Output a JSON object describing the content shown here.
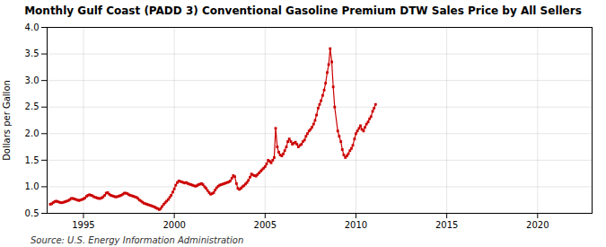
{
  "chart_data": {
    "type": "line",
    "title": "Monthly Gulf Coast (PADD 3) Conventional Gasoline Premium DTW Sales Price by All Sellers",
    "ylabel": "Dollars per Gallon",
    "annotations": [
      "Source: U.S. Energy Information Administration"
    ],
    "color": "#cc0000",
    "marker": "square",
    "grid": true,
    "xlim": [
      1993.0,
      2023.0
    ],
    "xticks": [
      1995,
      2000,
      2005,
      2010,
      2015,
      2020
    ],
    "ylim": [
      0.5,
      4.0
    ],
    "yticks": [
      0.5,
      {
        "value": 1.0,
        "label": "1.0"
      },
      1.5,
      {
        "value": 2.0,
        "label": "2.0"
      },
      2.5,
      {
        "value": 3.0,
        "label": "3.0"
      },
      3.5,
      {
        "value": 4.0,
        "label": "4.0"
      }
    ],
    "x": [
      1993.17,
      1993.25,
      1993.33,
      1993.42,
      1993.5,
      1993.58,
      1993.67,
      1993.75,
      1993.83,
      1993.92,
      1994.0,
      1994.08,
      1994.17,
      1994.25,
      1994.33,
      1994.42,
      1994.5,
      1994.58,
      1994.67,
      1994.75,
      1994.83,
      1994.92,
      1995.0,
      1995.08,
      1995.17,
      1995.25,
      1995.33,
      1995.42,
      1995.5,
      1995.58,
      1995.67,
      1995.75,
      1995.83,
      1995.92,
      1996.0,
      1996.08,
      1996.17,
      1996.25,
      1996.33,
      1996.42,
      1996.5,
      1996.58,
      1996.67,
      1996.75,
      1996.83,
      1996.92,
      1997.0,
      1997.08,
      1997.17,
      1997.25,
      1997.33,
      1997.42,
      1997.5,
      1997.58,
      1997.67,
      1997.75,
      1997.83,
      1997.92,
      1998.0,
      1998.08,
      1998.17,
      1998.25,
      1998.33,
      1998.42,
      1998.5,
      1998.58,
      1998.67,
      1998.75,
      1998.83,
      1998.92,
      1999.0,
      1999.08,
      1999.17,
      1999.25,
      1999.33,
      1999.42,
      1999.5,
      1999.58,
      1999.67,
      1999.75,
      1999.83,
      1999.92,
      2000.0,
      2000.08,
      2000.17,
      2000.25,
      2000.33,
      2000.42,
      2000.5,
      2000.58,
      2000.67,
      2000.75,
      2000.83,
      2000.92,
      2001.0,
      2001.08,
      2001.17,
      2001.25,
      2001.33,
      2001.42,
      2001.5,
      2001.58,
      2001.67,
      2001.75,
      2001.83,
      2001.92,
      2002.0,
      2002.08,
      2002.17,
      2002.25,
      2002.33,
      2002.42,
      2002.5,
      2002.58,
      2002.67,
      2002.75,
      2002.83,
      2002.92,
      2003.0,
      2003.08,
      2003.17,
      2003.25,
      2003.33,
      2003.42,
      2003.5,
      2003.58,
      2003.67,
      2003.75,
      2003.83,
      2003.92,
      2004.0,
      2004.08,
      2004.17,
      2004.25,
      2004.33,
      2004.42,
      2004.5,
      2004.58,
      2004.67,
      2004.75,
      2004.83,
      2004.92,
      2005.0,
      2005.08,
      2005.17,
      2005.25,
      2005.33,
      2005.42,
      2005.5,
      2005.58,
      2005.67,
      2005.75,
      2005.83,
      2005.92,
      2006.0,
      2006.08,
      2006.17,
      2006.25,
      2006.33,
      2006.42,
      2006.5,
      2006.58,
      2006.67,
      2006.75,
      2006.83,
      2006.92,
      2007.0,
      2007.08,
      2007.17,
      2007.25,
      2007.33,
      2007.42,
      2007.5,
      2007.58,
      2007.67,
      2007.75,
      2007.83,
      2007.92,
      2008.0,
      2008.08,
      2008.17,
      2008.25,
      2008.33,
      2008.42,
      2008.5,
      2008.58,
      2008.67,
      2008.75,
      2008.83,
      2009.0,
      2009.08,
      2009.17,
      2009.25,
      2009.33,
      2009.42,
      2009.5,
      2009.58,
      2009.67,
      2009.75,
      2009.83,
      2009.92,
      2010.0,
      2010.08,
      2010.17,
      2010.25,
      2010.33,
      2010.42,
      2010.5,
      2010.58,
      2010.67,
      2010.75,
      2010.83,
      2010.92,
      2011.0,
      2011.08
    ],
    "values": [
      0.67,
      0.68,
      0.7,
      0.72,
      0.73,
      0.72,
      0.71,
      0.7,
      0.7,
      0.71,
      0.72,
      0.73,
      0.74,
      0.76,
      0.78,
      0.78,
      0.77,
      0.76,
      0.75,
      0.74,
      0.75,
      0.76,
      0.77,
      0.79,
      0.82,
      0.84,
      0.85,
      0.84,
      0.83,
      0.81,
      0.8,
      0.79,
      0.78,
      0.78,
      0.79,
      0.81,
      0.84,
      0.88,
      0.89,
      0.86,
      0.84,
      0.83,
      0.82,
      0.81,
      0.81,
      0.82,
      0.83,
      0.84,
      0.86,
      0.88,
      0.88,
      0.87,
      0.85,
      0.84,
      0.83,
      0.82,
      0.81,
      0.8,
      0.78,
      0.75,
      0.73,
      0.71,
      0.69,
      0.68,
      0.67,
      0.66,
      0.65,
      0.64,
      0.63,
      0.62,
      0.6,
      0.59,
      0.57,
      0.59,
      0.63,
      0.67,
      0.7,
      0.73,
      0.76,
      0.8,
      0.84,
      0.9,
      0.96,
      1.03,
      1.08,
      1.11,
      1.1,
      1.09,
      1.08,
      1.07,
      1.08,
      1.06,
      1.05,
      1.04,
      1.03,
      1.02,
      1.01,
      1.02,
      1.04,
      1.05,
      1.06,
      1.04,
      1.0,
      0.97,
      0.93,
      0.89,
      0.86,
      0.87,
      0.89,
      0.94,
      0.98,
      1.01,
      1.03,
      1.04,
      1.05,
      1.06,
      1.07,
      1.08,
      1.09,
      1.11,
      1.16,
      1.21,
      1.19,
      1.06,
      0.97,
      0.95,
      0.97,
      1.0,
      1.02,
      1.05,
      1.08,
      1.12,
      1.18,
      1.24,
      1.22,
      1.21,
      1.2,
      1.23,
      1.26,
      1.29,
      1.32,
      1.35,
      1.38,
      1.43,
      1.5,
      1.48,
      1.45,
      1.5,
      1.55,
      2.1,
      1.75,
      1.65,
      1.6,
      1.58,
      1.62,
      1.68,
      1.75,
      1.85,
      1.9,
      1.85,
      1.8,
      1.82,
      1.84,
      1.8,
      1.75,
      1.78,
      1.8,
      1.85,
      1.88,
      1.95,
      2.0,
      2.05,
      2.08,
      2.12,
      2.18,
      2.25,
      2.35,
      2.48,
      2.55,
      2.62,
      2.72,
      2.82,
      2.95,
      3.15,
      3.3,
      3.6,
      3.35,
      2.88,
      2.5,
      2.05,
      1.95,
      1.85,
      1.7,
      1.6,
      1.55,
      1.58,
      1.62,
      1.68,
      1.72,
      1.78,
      1.9,
      2.0,
      2.05,
      2.1,
      2.15,
      2.08,
      2.05,
      2.12,
      2.18,
      2.22,
      2.28,
      2.32,
      2.42,
      2.48,
      2.55
    ]
  }
}
